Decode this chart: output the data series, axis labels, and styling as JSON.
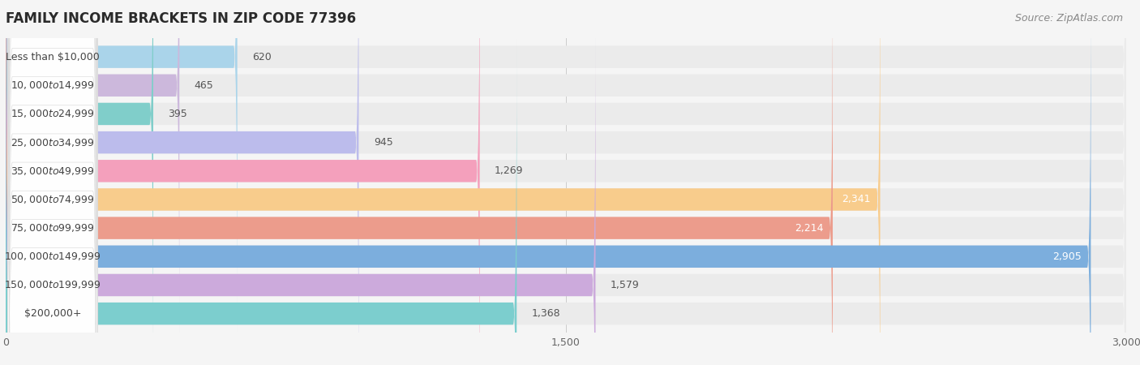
{
  "title": "FAMILY INCOME BRACKETS IN ZIP CODE 77396",
  "source": "Source: ZipAtlas.com",
  "categories": [
    "Less than $10,000",
    "$10,000 to $14,999",
    "$15,000 to $24,999",
    "$25,000 to $34,999",
    "$35,000 to $49,999",
    "$50,000 to $74,999",
    "$75,000 to $99,999",
    "$100,000 to $149,999",
    "$150,000 to $199,999",
    "$200,000+"
  ],
  "values": [
    620,
    465,
    395,
    945,
    1269,
    2341,
    2214,
    2905,
    1579,
    1368
  ],
  "bar_colors": [
    "#aad4ea",
    "#ccb8dc",
    "#80ceca",
    "#bcbcec",
    "#f4a0bc",
    "#f8cc8c",
    "#ec9c8c",
    "#7caedd",
    "#ccaadc",
    "#7ccece"
  ],
  "label_colors_inside": [
    "#666666",
    "#666666",
    "#666666",
    "#666666",
    "#666666",
    "#ffffff",
    "#ffffff",
    "#ffffff",
    "#666666",
    "#666666"
  ],
  "xlim": [
    0,
    3000
  ],
  "xticks": [
    0,
    1500,
    3000
  ],
  "xtick_labels": [
    "0",
    "1,500",
    "3,000"
  ],
  "background_color": "#f5f5f5",
  "row_bg_color": "#ebebeb",
  "title_fontsize": 12,
  "source_fontsize": 9,
  "value_fontsize": 9,
  "category_fontsize": 9
}
